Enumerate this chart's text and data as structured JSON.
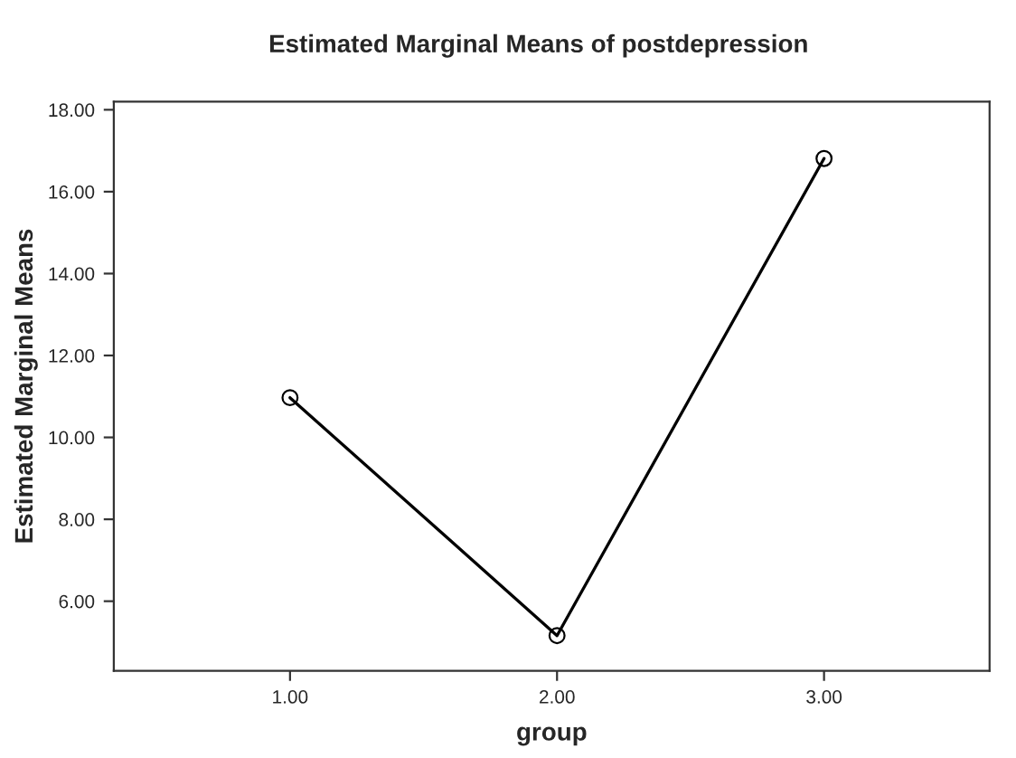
{
  "chart_data": {
    "type": "line",
    "title": "Estimated Marginal Means of postdepression",
    "xlabel": "group",
    "ylabel": "Estimated Marginal Means",
    "x": [
      1,
      2,
      3
    ],
    "series": [
      {
        "color": "#000000",
        "values": [
          10.97,
          5.16,
          16.81
        ]
      }
    ],
    "xlim": [
      0.34,
      3.62
    ],
    "xticks": [
      {
        "value": 1,
        "label": "1.00"
      },
      {
        "value": 2,
        "label": "2.00"
      },
      {
        "value": 3,
        "label": "3.00"
      }
    ],
    "ylim": [
      4.3,
      18.2
    ],
    "yticks": [
      {
        "value": 6,
        "label": "6.00"
      },
      {
        "value": 8,
        "label": "8.00"
      },
      {
        "value": 10,
        "label": "10.00"
      },
      {
        "value": 12,
        "label": "12.00"
      },
      {
        "value": 14,
        "label": "14.00"
      },
      {
        "value": 16,
        "label": "16.00"
      },
      {
        "value": 18,
        "label": "18.00"
      }
    ],
    "grid": false,
    "marker": "circle",
    "line_style": "solid"
  }
}
